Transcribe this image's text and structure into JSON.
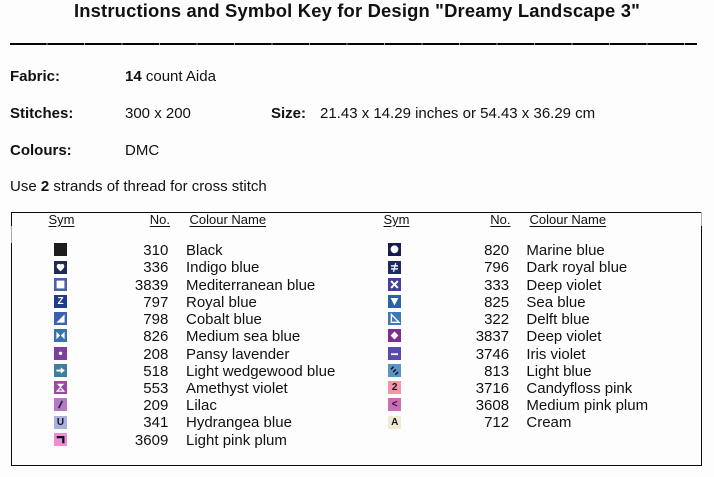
{
  "title": "Instructions and Symbol Key for Design \"Dreamy Landscape 3\"",
  "info": {
    "fabric": {
      "label": "Fabric:",
      "bold": "14",
      "rest": " count Aida"
    },
    "stitches": {
      "label": "Stitches:",
      "value": "300 x 200"
    },
    "size": {
      "label": "Size:",
      "value": "21.43 x 14.29 inches or 54.43 x 36.29 cm"
    },
    "colours": {
      "label": "Colours:",
      "value": "DMC"
    }
  },
  "strands": {
    "prefix": "Use ",
    "bold": "2",
    "suffix": " strands of thread for cross stitch"
  },
  "key_table": {
    "headers": {
      "sym": "Sym",
      "no": "No.",
      "name": "Colour Name"
    },
    "left_rows": [
      {
        "glyph": "solid",
        "bg": "#1d1d1d",
        "fg": "#ffffff",
        "number": "310",
        "name": "Black"
      },
      {
        "glyph": "heart",
        "bg": "#1f2a5a",
        "fg": "#ffffff",
        "number": "336",
        "name": "Indigo blue"
      },
      {
        "glyph": "square-outline",
        "bg": "#4a60a8",
        "fg": "#ffffff",
        "number": "3839",
        "name": "Mediterranean blue"
      },
      {
        "glyph": "letter-Z",
        "bg": "#203a8c",
        "fg": "#ffffff",
        "number": "797",
        "name": "Royal blue"
      },
      {
        "glyph": "triangle-br",
        "bg": "#3c61ae",
        "fg": "#ffffff",
        "number": "798",
        "name": "Cobalt blue"
      },
      {
        "glyph": "bowtie",
        "bg": "#3a72ab",
        "fg": "#ffffff",
        "number": "826",
        "name": "Medium sea blue"
      },
      {
        "glyph": "dot",
        "bg": "#7c3f9d",
        "fg": "#ffffff",
        "number": "208",
        "name": "Pansy lavender"
      },
      {
        "glyph": "arrow-right",
        "bg": "#3f7f9a",
        "fg": "#ffffff",
        "number": "518",
        "name": "Light wedgewood blue"
      },
      {
        "glyph": "hourglass",
        "bg": "#9a48a2",
        "fg": "#ffffff",
        "number": "553",
        "name": "Amethyst violet"
      },
      {
        "glyph": "slash",
        "bg": "#b27bc4",
        "fg": "#1e2240",
        "number": "209",
        "name": "Lilac"
      },
      {
        "glyph": "letter-U",
        "bg": "#a9b0dc",
        "fg": "#15172e",
        "number": "341",
        "name": "Hydrangea blue"
      },
      {
        "glyph": "corner-tr",
        "bg": "#ef8bd5",
        "fg": "#0f0f18",
        "number": "3609",
        "name": "Light pink plum"
      }
    ],
    "right_rows": [
      {
        "glyph": "circle",
        "bg": "#161c4e",
        "fg": "#ffffff",
        "number": "820",
        "name": "Marine blue"
      },
      {
        "glyph": "not-equal",
        "bg": "#1e2a64",
        "fg": "#ffffff",
        "number": "796",
        "name": "Dark royal blue"
      },
      {
        "glyph": "cross-x",
        "bg": "#453f9a",
        "fg": "#ffffff",
        "number": "333",
        "name": "Deep violet"
      },
      {
        "glyph": "triangle-down",
        "bg": "#2d63a6",
        "fg": "#ffffff",
        "number": "825",
        "name": "Sea blue"
      },
      {
        "glyph": "triangle-outline",
        "bg": "#4078b4",
        "fg": "#ffffff",
        "number": "322",
        "name": "Delft blue"
      },
      {
        "glyph": "diamond",
        "bg": "#7c2f90",
        "fg": "#ffffff",
        "number": "3837",
        "name": "Deep violet"
      },
      {
        "glyph": "dash",
        "bg": "#5a4aad",
        "fg": "#ffffff",
        "number": "3746",
        "name": "Iris violet"
      },
      {
        "glyph": "slashes-3",
        "bg": "#5d92c5",
        "fg": "#10141f",
        "number": "813",
        "name": "Light blue"
      },
      {
        "glyph": "digit-2",
        "bg": "#f693a6",
        "fg": "#14172e",
        "number": "3716",
        "name": "Candyfloss pink"
      },
      {
        "glyph": "less-than",
        "bg": "#cc6db3",
        "fg": "#14172e",
        "number": "3608",
        "name": "Medium pink plum"
      },
      {
        "glyph": "letter-A",
        "bg": "#f0e9d3",
        "fg": "#14172e",
        "number": "712",
        "name": "Cream"
      }
    ]
  }
}
